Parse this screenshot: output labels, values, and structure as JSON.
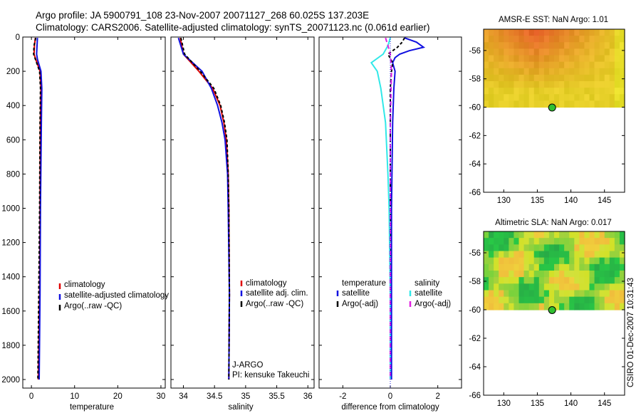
{
  "title": {
    "line1": "Argo profile: JA 5900791_108 23-Nov-2007 20071127_268 60.025S 137.203E",
    "line2": "Climatology: CARS2006. Satellite-adjusted climatology: synTS_20071123.nc (0.061d earlier)"
  },
  "colors": {
    "climatology": "#e00000",
    "satellite": "#1010e0",
    "argo": "#000000",
    "satellite_salinity": "#30e8e8",
    "argo_salinity": "#e020e0"
  },
  "chart_data": [
    {
      "type": "line",
      "id": "temperature-panel",
      "xlabel": "temperature",
      "ylabel": "",
      "xlim": [
        -2,
        31
      ],
      "ylim": [
        2050,
        0
      ],
      "x_ticks": [
        0,
        10,
        20,
        30
      ],
      "y_ticks": [
        0,
        200,
        400,
        600,
        800,
        1000,
        1200,
        1400,
        1600,
        1800,
        2000
      ],
      "legend": [
        "climatology",
        "satellite-adjusted climatology",
        "Argo(..raw -QC)"
      ],
      "series": [
        {
          "name": "climatology",
          "color": "#e00000",
          "dash": "",
          "depth": [
            5,
            50,
            100,
            130,
            200,
            300,
            500,
            1000,
            1500,
            2000
          ],
          "values": [
            0.9,
            0.7,
            0.6,
            1.0,
            2.0,
            2.2,
            2.1,
            2.0,
            1.9,
            1.6
          ]
        },
        {
          "name": "satellite-adjusted climatology",
          "color": "#1010e0",
          "dash": "",
          "depth": [
            5,
            50,
            100,
            130,
            200,
            300,
            500,
            1000,
            1500,
            2000
          ],
          "values": [
            1.4,
            1.3,
            1.2,
            1.4,
            2.2,
            2.4,
            2.3,
            2.1,
            2.0,
            1.8
          ]
        },
        {
          "name": "Argo(..raw -QC)",
          "color": "#000000",
          "dash": "4,3",
          "depth": [
            5,
            50,
            100,
            150,
            200,
            300,
            500,
            1000,
            1500,
            2000
          ],
          "values": [
            1.0,
            0.6,
            0.5,
            1.2,
            1.9,
            2.1,
            2.0,
            1.9,
            1.7,
            1.5
          ]
        }
      ]
    },
    {
      "type": "line",
      "id": "salinity-panel",
      "xlabel": "salinity",
      "ylabel": "",
      "xlim": [
        33.8,
        36.1
      ],
      "ylim": [
        2050,
        0
      ],
      "x_ticks": [
        34,
        34.5,
        35,
        35.5,
        36
      ],
      "y_ticks": [],
      "legend": [
        "climatology",
        "satellite adj. clim.",
        "Argo(..raw -QC)"
      ],
      "annotations": [
        "J-ARGO",
        "PI: kensuke Takeuchi"
      ],
      "series": [
        {
          "name": "climatology",
          "color": "#e00000",
          "dash": "",
          "depth": [
            5,
            100,
            200,
            300,
            400,
            500,
            600,
            800,
            1000,
            1500,
            2000
          ],
          "values": [
            33.95,
            34.0,
            34.25,
            34.47,
            34.59,
            34.65,
            34.69,
            34.72,
            34.73,
            34.74,
            34.73
          ]
        },
        {
          "name": "satellite adj. clim.",
          "color": "#1010e0",
          "dash": "",
          "depth": [
            5,
            100,
            150,
            200,
            300,
            400,
            500,
            600,
            800,
            1000,
            1500,
            2000
          ],
          "values": [
            33.92,
            34.0,
            34.15,
            34.3,
            34.45,
            34.55,
            34.62,
            34.67,
            34.71,
            34.72,
            34.74,
            34.73
          ]
        },
        {
          "name": "Argo(..raw -QC)",
          "color": "#000000",
          "dash": "4,3",
          "depth": [
            5,
            100,
            200,
            300,
            400,
            500,
            600,
            800,
            1000,
            1500,
            2000
          ],
          "values": [
            33.96,
            34.02,
            34.27,
            34.49,
            34.6,
            34.66,
            34.7,
            34.72,
            34.73,
            34.74,
            34.73
          ]
        }
      ]
    },
    {
      "type": "line",
      "id": "difference-panel",
      "xlabel": "difference from climatology",
      "ylabel": "",
      "xlim": [
        -3,
        3
      ],
      "ylim": [
        2050,
        0
      ],
      "x_ticks": [
        -2,
        0,
        2
      ],
      "y_ticks": [],
      "legend_groups": [
        {
          "heading": "temperature",
          "items": [
            "satellite",
            "Argo(-adj)"
          ]
        },
        {
          "heading": "salinity",
          "items": [
            "satellite",
            "Argo(-adj)"
          ]
        }
      ],
      "series": [
        {
          "name": "temperature satellite",
          "color": "#1010e0",
          "dash": "",
          "depth": [
            5,
            30,
            60,
            80,
            100,
            120,
            150,
            200,
            300,
            500,
            1000,
            1500,
            2000
          ],
          "values": [
            0.6,
            1.1,
            1.4,
            0.8,
            0.4,
            0.2,
            0.1,
            0.2,
            0.15,
            0.1,
            0.05,
            0.05,
            0.05
          ]
        },
        {
          "name": "temperature Argo(-adj)",
          "color": "#000000",
          "dash": "4,3",
          "depth": [
            5,
            30,
            60,
            100,
            150,
            200,
            300,
            500,
            1000,
            2000
          ],
          "values": [
            0.6,
            0.5,
            0.3,
            -0.1,
            0.1,
            0.05,
            0.0,
            0.0,
            0.0,
            0.0
          ]
        },
        {
          "name": "salinity satellite",
          "color": "#30e8e8",
          "dash": "",
          "depth": [
            5,
            50,
            100,
            150,
            200,
            300,
            500,
            800,
            1000,
            1500,
            2000
          ],
          "values": [
            0.0,
            -0.1,
            -0.3,
            -0.8,
            -0.55,
            -0.4,
            -0.2,
            -0.1,
            -0.05,
            0.0,
            0.0
          ]
        },
        {
          "name": "salinity Argo(-adj)",
          "color": "#e020e0",
          "dash": "6,4",
          "depth": [
            5,
            50,
            100,
            200,
            500,
            1000,
            2000
          ],
          "values": [
            -0.2,
            -0.1,
            0.0,
            0.05,
            0.0,
            0.0,
            0.0
          ]
        }
      ]
    },
    {
      "type": "heatmap",
      "id": "amsre-sst-map",
      "title": "AMSR-E SST: NaN Argo: 1.01",
      "xlim": [
        127,
        148
      ],
      "ylim": [
        -66,
        -54.5
      ],
      "x_ticks": [
        130,
        135,
        140,
        145
      ],
      "y_ticks": [
        -56,
        -58,
        -60,
        -62,
        -64,
        -66
      ],
      "data_extent_lat": [
        -60,
        -54.5
      ],
      "profile_point": {
        "lon": 137.203,
        "lat": -60.025
      }
    },
    {
      "type": "heatmap",
      "id": "altimetric-sla-map",
      "title": "Altimetric SLA: NaN Argo: 0.017",
      "xlim": [
        127,
        148
      ],
      "ylim": [
        -66,
        -54.5
      ],
      "x_ticks": [
        130,
        135,
        140,
        145
      ],
      "y_ticks": [
        -56,
        -58,
        -60,
        -62,
        -64,
        -66
      ],
      "data_extent_lat": [
        -60,
        -54.5
      ],
      "profile_point": {
        "lon": 137.203,
        "lat": -60.025
      }
    }
  ],
  "credit": "CSIRO 01-Dec-2007 10:31:43"
}
